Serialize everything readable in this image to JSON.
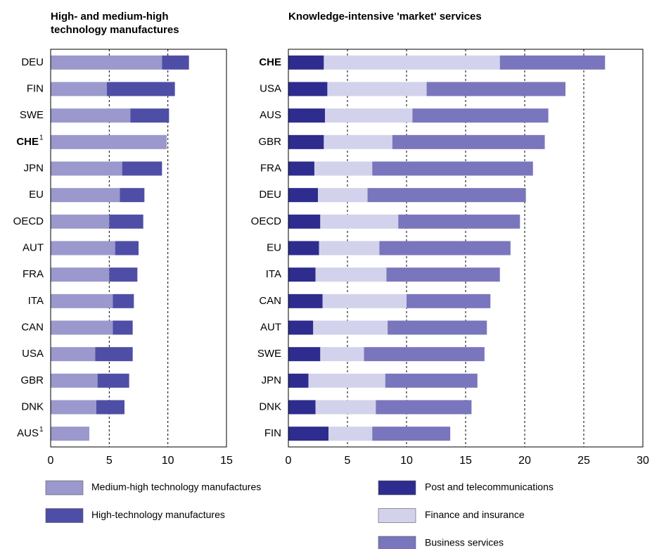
{
  "chart_data": [
    {
      "type": "bar",
      "orientation": "horizontal",
      "stacked": true,
      "title": "High- and medium-high technology manufactures",
      "categories": [
        "DEU",
        "FIN",
        "SWE",
        "CHE",
        "JPN",
        "EU",
        "OECD",
        "AUT",
        "FRA",
        "ITA",
        "CAN",
        "USA",
        "GBR",
        "DNK",
        "AUS"
      ],
      "category_notes": [
        null,
        null,
        null,
        "1",
        null,
        null,
        null,
        null,
        null,
        null,
        null,
        null,
        null,
        null,
        "1"
      ],
      "highlight_category": "CHE",
      "series": [
        {
          "name": "Medium-high technology manufactures",
          "color": "#9a98cc",
          "values": [
            9.5,
            4.8,
            6.8,
            9.9,
            6.1,
            5.9,
            5.0,
            5.5,
            5.0,
            5.3,
            5.3,
            3.8,
            4.0,
            3.9,
            3.3
          ]
        },
        {
          "name": "High-technology manufactures",
          "color": "#4f4ea6",
          "values": [
            2.3,
            5.8,
            3.3,
            0,
            3.4,
            2.1,
            2.9,
            2.0,
            2.4,
            1.8,
            1.7,
            3.2,
            2.7,
            2.4,
            0
          ]
        }
      ],
      "xlim": [
        0,
        15
      ],
      "xticks": [
        0,
        5,
        10,
        15
      ],
      "grid": true
    },
    {
      "type": "bar",
      "orientation": "horizontal",
      "stacked": true,
      "title": "Knowledge-intensive 'market' services",
      "categories": [
        "CHE",
        "USA",
        "AUS",
        "GBR",
        "FRA",
        "DEU",
        "OECD",
        "EU",
        "ITA",
        "CAN",
        "AUT",
        "SWE",
        "JPN",
        "DNK",
        "FIN"
      ],
      "highlight_category": "CHE",
      "series": [
        {
          "name": "Post and telecommunications",
          "color": "#2e2c8e",
          "values": [
            3.0,
            3.3,
            3.1,
            3.0,
            2.2,
            2.5,
            2.7,
            2.6,
            2.3,
            2.9,
            2.1,
            2.7,
            1.7,
            2.3,
            3.4
          ]
        },
        {
          "name": "Finance and insurance",
          "color": "#d3d2ec",
          "values": [
            14.9,
            8.4,
            7.4,
            5.8,
            4.9,
            4.2,
            6.6,
            5.1,
            6.0,
            7.1,
            6.3,
            3.7,
            6.5,
            5.1,
            3.7
          ]
        },
        {
          "name": "Business services",
          "color": "#7a76bd",
          "values": [
            8.9,
            11.75,
            11.5,
            12.9,
            13.6,
            13.4,
            10.3,
            11.1,
            9.6,
            7.1,
            8.4,
            10.2,
            7.8,
            8.1,
            6.6
          ]
        }
      ],
      "xlim": [
        0,
        30
      ],
      "xticks": [
        0,
        5,
        10,
        15,
        20,
        25,
        30
      ],
      "grid": true
    }
  ]
}
